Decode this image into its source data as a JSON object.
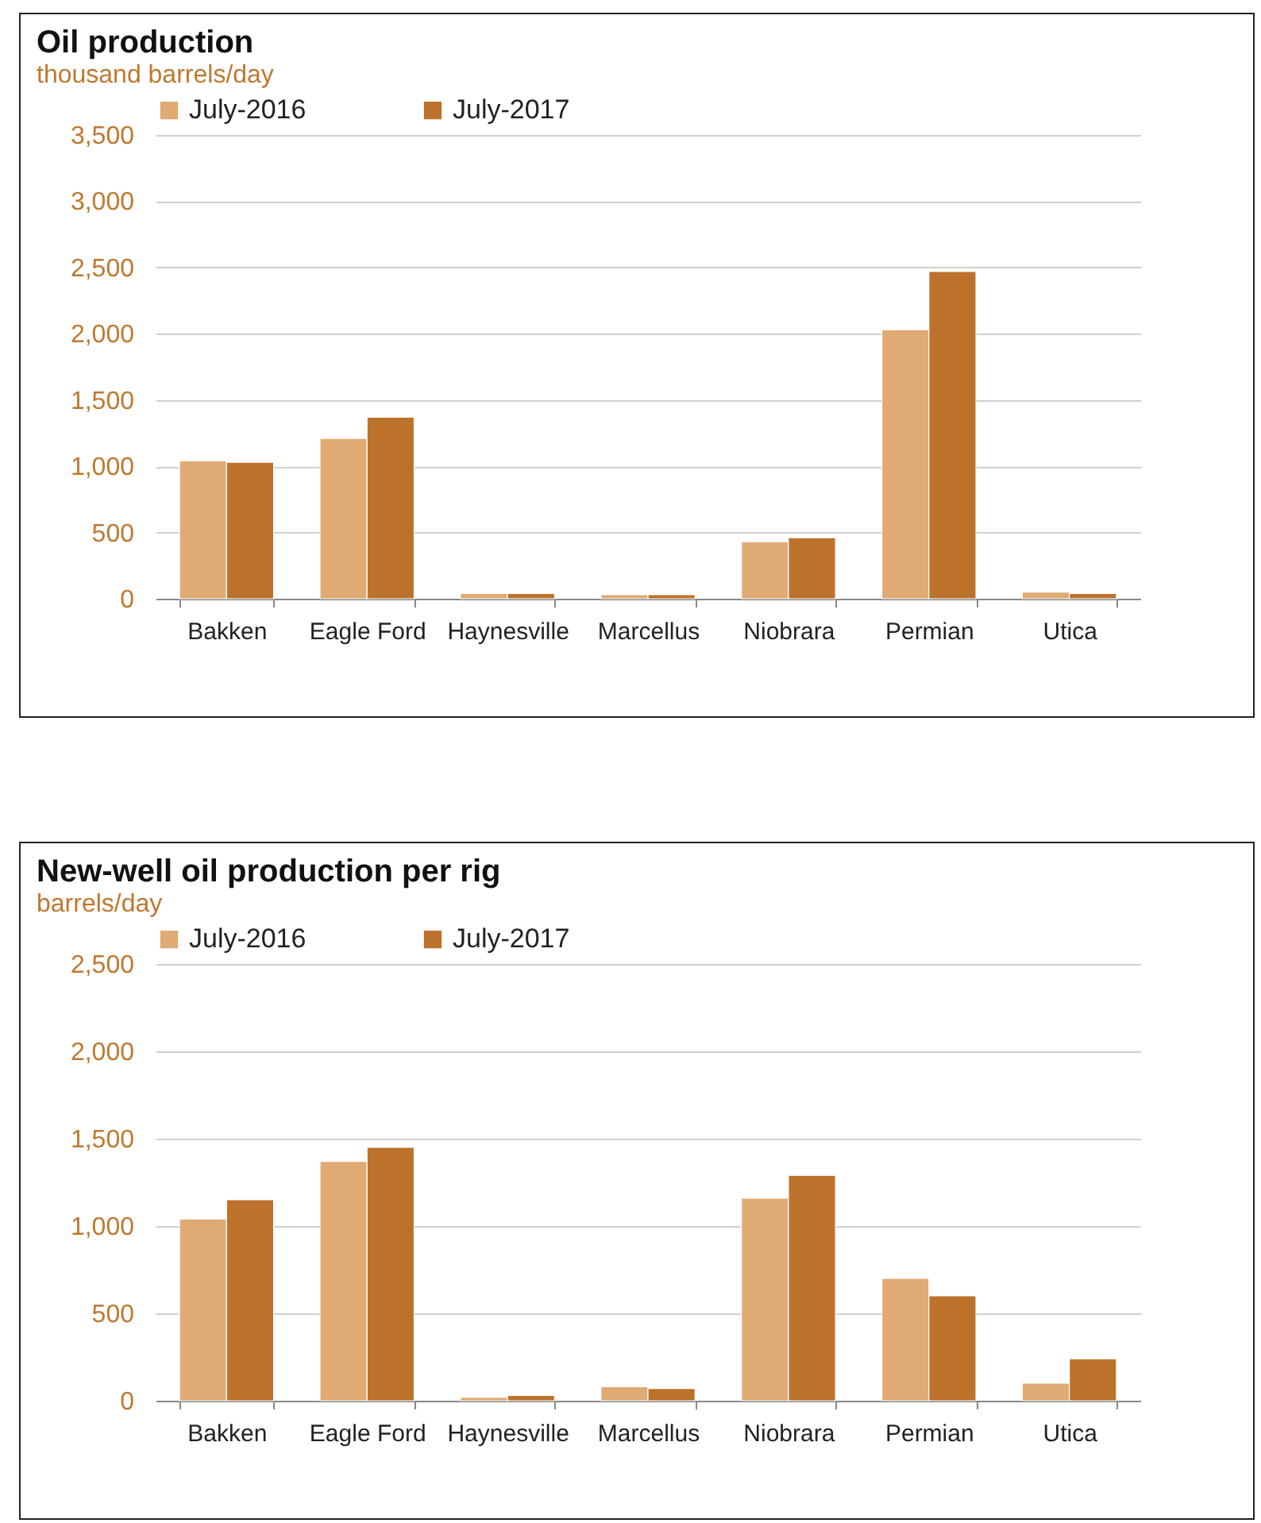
{
  "chart_data": [
    {
      "type": "bar",
      "title": "Oil production",
      "subtitle": "thousand barrels/day",
      "categories": [
        "Bakken",
        "Eagle Ford",
        "Haynesville",
        "Marcellus",
        "Niobrara",
        "Permian",
        "Utica"
      ],
      "series": [
        {
          "name": "July-2016",
          "color": "#e0aa74",
          "values": [
            1040,
            1210,
            40,
            30,
            430,
            2030,
            50
          ]
        },
        {
          "name": "July-2017",
          "color": "#bc722b",
          "values": [
            1030,
            1370,
            40,
            30,
            460,
            2470,
            40
          ]
        }
      ],
      "ylim": [
        0,
        3500
      ],
      "yticks": [
        0,
        {
          "value": 500,
          "label": "500"
        },
        {
          "value": 1000,
          "label": "1,000"
        },
        {
          "value": 1500,
          "label": "1,500"
        },
        {
          "value": 2000,
          "label": "2,000"
        },
        {
          "value": 2500,
          "label": "2,500"
        },
        {
          "value": 3000,
          "label": "3,000"
        },
        {
          "value": 3500,
          "label": "3,500"
        }
      ],
      "grid": "y",
      "legend": "top"
    },
    {
      "type": "bar",
      "title": "New-well oil production per rig",
      "subtitle": "barrels/day",
      "categories": [
        "Bakken",
        "Eagle Ford",
        "Haynesville",
        "Marcellus",
        "Niobrara",
        "Permian",
        "Utica"
      ],
      "series": [
        {
          "name": "July-2016",
          "color": "#e0aa74",
          "values": [
            1040,
            1370,
            20,
            80,
            1160,
            700,
            100
          ]
        },
        {
          "name": "July-2017",
          "color": "#bc722b",
          "values": [
            1150,
            1450,
            30,
            70,
            1290,
            600,
            240
          ]
        }
      ],
      "ylim": [
        0,
        2500
      ],
      "yticks": [
        0,
        {
          "value": 500,
          "label": "500"
        },
        {
          "value": 1000,
          "label": "1,000"
        },
        {
          "value": 1500,
          "label": "1,500"
        },
        {
          "value": 2000,
          "label": "2,000"
        },
        {
          "value": 2500,
          "label": "2,500"
        }
      ],
      "grid": "y",
      "legend": "top"
    }
  ]
}
